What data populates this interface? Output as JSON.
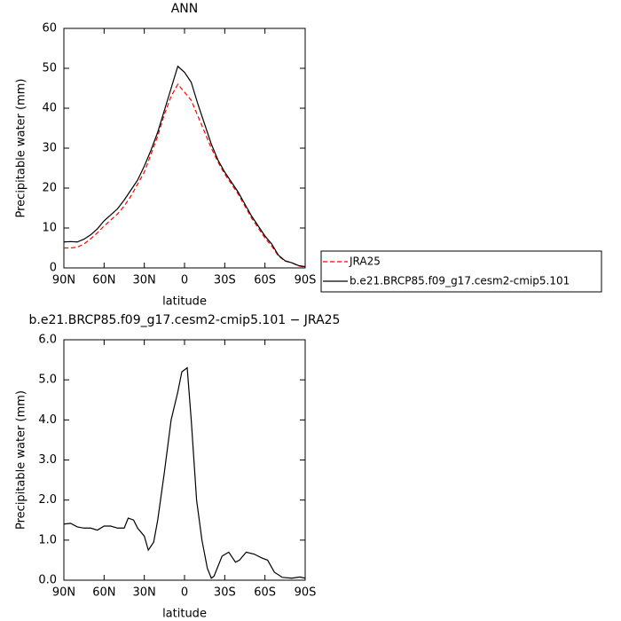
{
  "chart_data": [
    {
      "type": "line",
      "title": "ANN",
      "xlabel": "latitude",
      "ylabel": "Precipitable water (mm)",
      "x": [
        90,
        85,
        80,
        75,
        70,
        65,
        60,
        55,
        50,
        45,
        40,
        35,
        30,
        25,
        20,
        15,
        10,
        5,
        0,
        -5,
        -10,
        -15,
        -20,
        -25,
        -30,
        -35,
        -40,
        -45,
        -50,
        -55,
        -60,
        -65,
        -70,
        -75,
        -80,
        -85,
        -90
      ],
      "series": [
        {
          "name": "JRA25",
          "color": "#ff0000",
          "dashed": true,
          "values": [
            5,
            5,
            5.2,
            6,
            7.3,
            8.8,
            10.5,
            12,
            13.5,
            15.5,
            18,
            21,
            24,
            28.5,
            33,
            38.5,
            43,
            46,
            44,
            42,
            38,
            34,
            30,
            26.5,
            23.5,
            21,
            18.5,
            15.5,
            12.5,
            10,
            7.5,
            5.5,
            3,
            1.7,
            1.3,
            0.5,
            0.2
          ]
        },
        {
          "name": "b.e21.BRCP85.f09_g17.cesm2-cmip5.101",
          "color": "#000000",
          "dashed": false,
          "values": [
            6.5,
            6.6,
            6.5,
            7.2,
            8.3,
            9.8,
            11.8,
            13.3,
            14.8,
            17,
            19.5,
            22,
            25.5,
            29.5,
            34,
            39.5,
            45,
            50.5,
            49,
            46.5,
            41,
            36,
            31,
            27,
            24,
            21.5,
            19,
            16,
            13,
            10.5,
            8,
            6,
            3.2,
            1.8,
            1.3,
            0.6,
            0.3
          ]
        }
      ],
      "xlim": [
        90,
        -90
      ],
      "xticks": [
        {
          "value": 90,
          "label": "90N"
        },
        {
          "value": 60,
          "label": "60N"
        },
        {
          "value": 30,
          "label": "30N"
        },
        0,
        {
          "value": -30,
          "label": "30S"
        },
        {
          "value": -60,
          "label": "60S"
        },
        {
          "value": -90,
          "label": "90S"
        }
      ],
      "ylim": [
        0,
        60
      ],
      "yticks": [
        0,
        10,
        20,
        30,
        40,
        50,
        60
      ],
      "legend": "right"
    },
    {
      "type": "line",
      "title": "b.e21.BRCP85.f09_g17.cesm2-cmip5.101 − JRA25",
      "xlabel": "latitude",
      "ylabel": "Precipitable water (mm)",
      "x": [
        90,
        85,
        80,
        75,
        70,
        65,
        60,
        55,
        50,
        45,
        42,
        38,
        35,
        30,
        27,
        23,
        20,
        15,
        10,
        5,
        2,
        -2,
        -5,
        -9,
        -13,
        -17,
        -20,
        -22,
        -28,
        -33,
        -38,
        -41,
        -46,
        -52,
        -58,
        -62,
        -67,
        -73,
        -80,
        -86,
        -90
      ],
      "series": [
        {
          "color": "#000000",
          "dashed": false,
          "values": [
            1.4,
            1.42,
            1.33,
            1.3,
            1.3,
            1.25,
            1.35,
            1.35,
            1.3,
            1.3,
            1.55,
            1.5,
            1.3,
            1.1,
            0.75,
            0.95,
            1.5,
            2.7,
            4.0,
            4.7,
            5.2,
            5.3,
            4.0,
            2.0,
            1.0,
            0.3,
            0.05,
            0.1,
            0.6,
            0.7,
            0.45,
            0.5,
            0.7,
            0.65,
            0.55,
            0.5,
            0.2,
            0.07,
            0.05,
            0.08,
            0.05
          ]
        }
      ],
      "xlim": [
        90,
        -90
      ],
      "xticks": [
        {
          "value": 90,
          "label": "90N"
        },
        {
          "value": 60,
          "label": "60N"
        },
        {
          "value": 30,
          "label": "30N"
        },
        0,
        {
          "value": -30,
          "label": "30S"
        },
        {
          "value": -60,
          "label": "60S"
        },
        {
          "value": -90,
          "label": "90S"
        }
      ],
      "ylim": [
        0,
        6
      ],
      "yticks": [
        {
          "value": 0,
          "label": "0.0"
        },
        {
          "value": 1,
          "label": "1.0"
        },
        {
          "value": 2,
          "label": "2.0"
        },
        {
          "value": 3,
          "label": "3.0"
        },
        {
          "value": 4,
          "label": "4.0"
        },
        {
          "value": 5,
          "label": "5.0"
        },
        {
          "value": 6,
          "label": "6.0"
        }
      ]
    }
  ]
}
